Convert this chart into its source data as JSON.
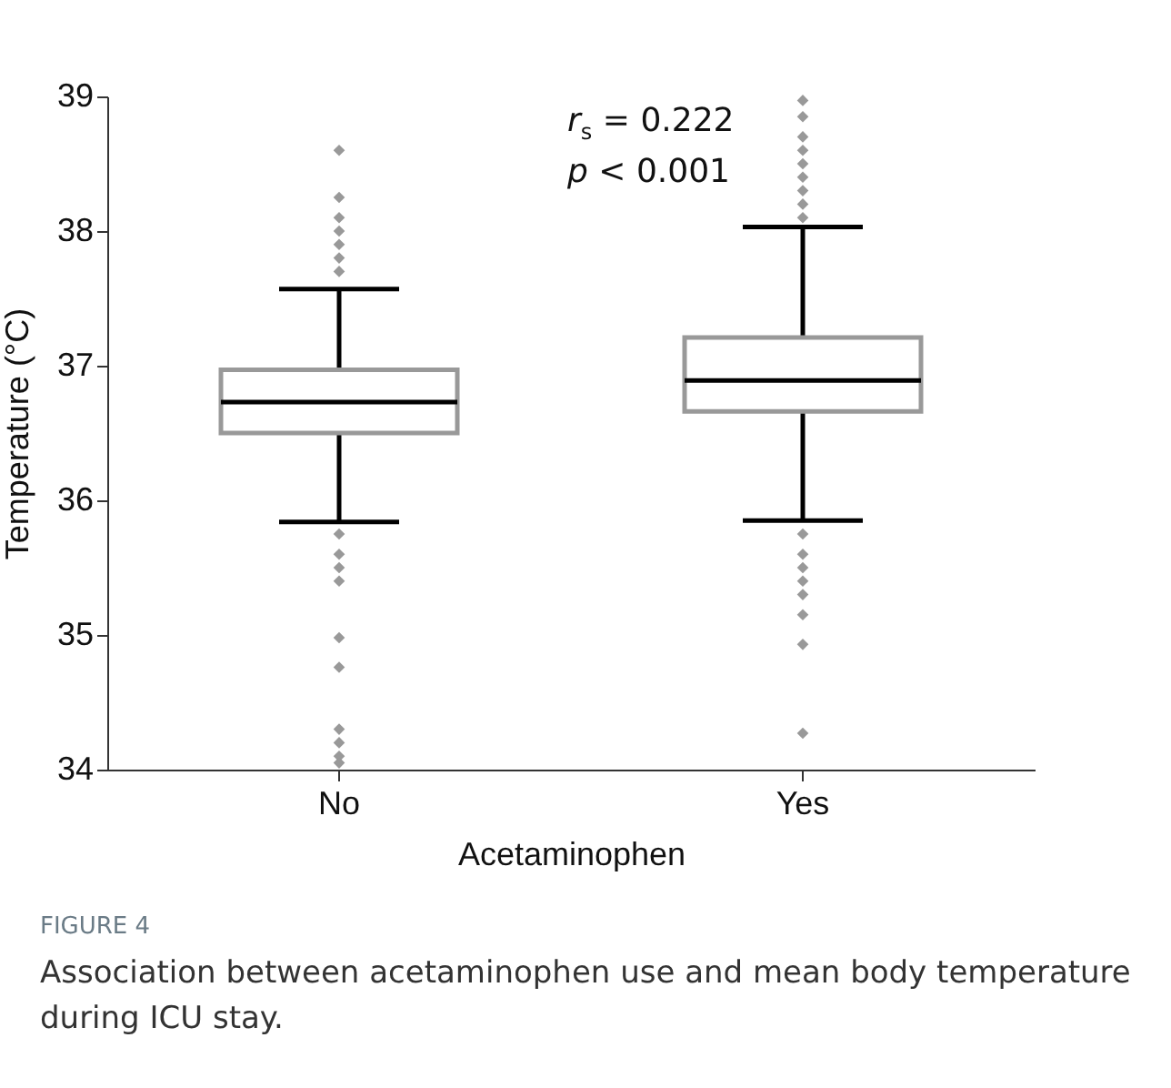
{
  "chart_data": {
    "type": "box",
    "xlabel": "Acetaminophen",
    "ylabel": "Temperature (°C)",
    "categories": [
      "No",
      "Yes"
    ],
    "ylim": [
      34,
      39
    ],
    "yticks": [
      34,
      35,
      36,
      37,
      38,
      39
    ],
    "marker": "diamond",
    "series": [
      {
        "color": "#999999",
        "boxes": [
          {
            "low": 35.84,
            "q1": 36.5,
            "median": 36.73,
            "q3": 36.97,
            "high": 37.57,
            "outliers": [
              38.6,
              38.25,
              38.1,
              38.0,
              37.9,
              37.8,
              37.7,
              35.75,
              35.6,
              35.5,
              35.4,
              34.98,
              34.76,
              34.3,
              34.2,
              34.1,
              34.05
            ]
          },
          {
            "low": 35.85,
            "q1": 36.66,
            "median": 36.89,
            "q3": 37.21,
            "high": 38.03,
            "outliers": [
              38.97,
              38.85,
              38.7,
              38.6,
              38.5,
              38.4,
              38.3,
              38.2,
              38.1,
              35.75,
              35.6,
              35.5,
              35.4,
              35.3,
              35.15,
              34.93,
              34.27
            ]
          }
        ]
      }
    ],
    "annotations": [
      "r$_{s}$ = 0.222",
      "p < 0.001",
      "FIGURE 4",
      "Association between acetaminophen use and mean body temperature during ICU stay."
    ]
  }
}
